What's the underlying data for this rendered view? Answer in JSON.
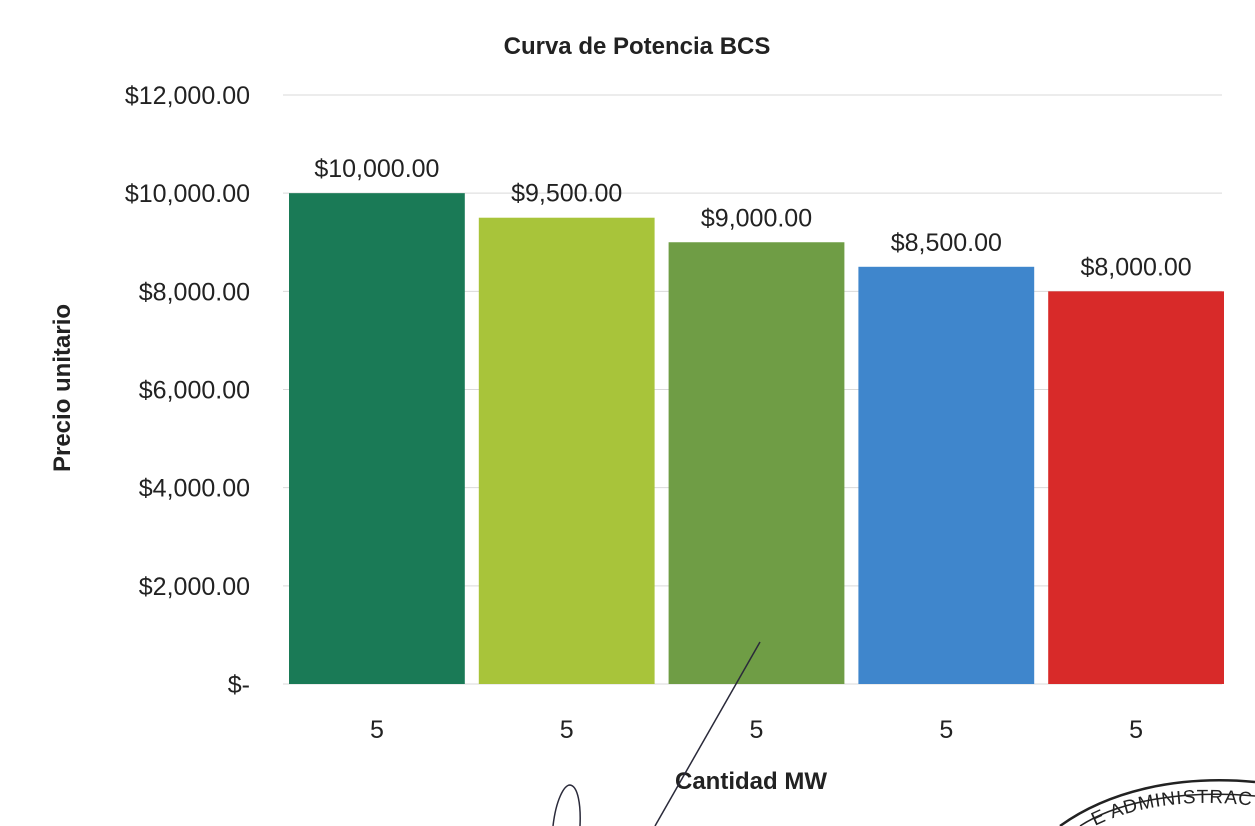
{
  "chart_data": {
    "type": "bar",
    "title": "Curva de Potencia BCS",
    "xlabel": "Cantidad MW",
    "ylabel": "Precio unitario",
    "categories": [
      "5",
      "5",
      "5",
      "5",
      "5"
    ],
    "values": [
      10000,
      9500,
      9000,
      8500,
      8000
    ],
    "data_labels": [
      "$10,000.00",
      "$9,500.00",
      "$9,000.00",
      "$8,500.00",
      "$8,000.00"
    ],
    "colors": [
      "#1a7a56",
      "#a8c43a",
      "#6f9d45",
      "#3f86cc",
      "#d82a29"
    ],
    "ylim": [
      0,
      12000
    ],
    "yticks": [
      {
        "value": 0,
        "label": "$-"
      },
      {
        "value": 2000,
        "label": "$2,000.00"
      },
      {
        "value": 4000,
        "label": "$4,000.00"
      },
      {
        "value": 6000,
        "label": "$6,000.00"
      },
      {
        "value": 8000,
        "label": "$8,000.00"
      },
      {
        "value": 10000,
        "label": "$10,000.00"
      },
      {
        "value": 12000,
        "label": "$12,000.00"
      }
    ],
    "grid": true,
    "legend": "none"
  },
  "stamp": {
    "text": "ADMINISTRACIÓN",
    "prefix": "E"
  }
}
